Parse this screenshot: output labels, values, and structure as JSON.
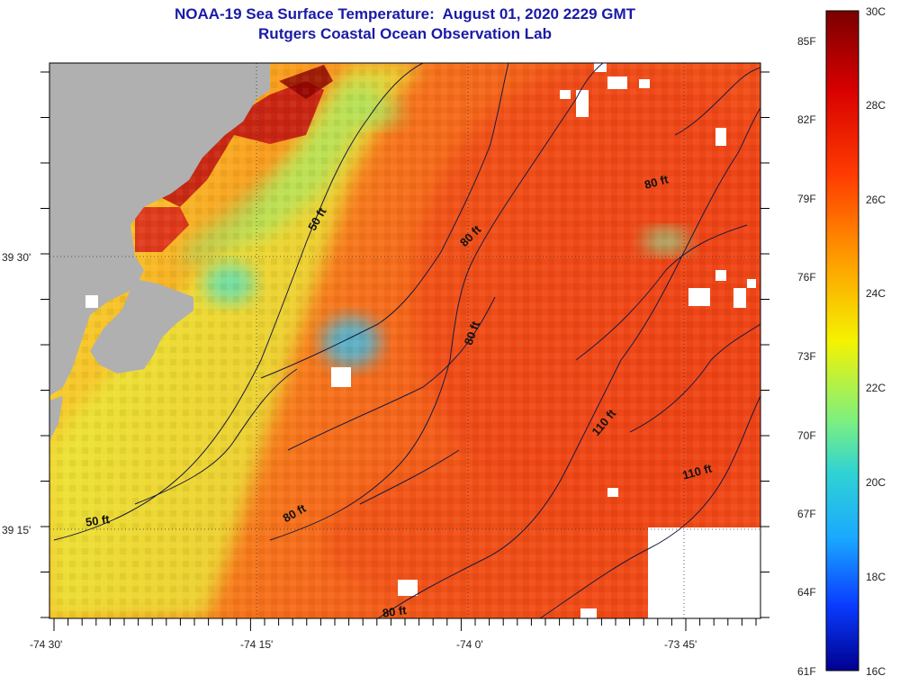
{
  "title": "NOAA-19 Sea Surface Temperature:  August 01, 2020 2229 GMT",
  "subtitle": "Rutgers Coastal Ocean Observation Lab",
  "axes": {
    "lon_labels": [
      "-74 30'",
      "-74 15'",
      "-74 0'",
      "-73 45'"
    ],
    "lat_labels": [
      "39 30'",
      "39 15'"
    ]
  },
  "depth_contours": [
    {
      "label": "50 ft"
    },
    {
      "label": "50 ft"
    },
    {
      "label": "80 ft"
    },
    {
      "label": "80 ft"
    },
    {
      "label": "80 ft"
    },
    {
      "label": "80 ft"
    },
    {
      "label": "80 ft"
    },
    {
      "label": "110 ft"
    },
    {
      "label": "110 ft"
    }
  ],
  "colorbar": {
    "celsius_labels": [
      "30C",
      "28C",
      "26C",
      "24C",
      "22C",
      "20C",
      "18C",
      "16C"
    ],
    "fahrenheit_labels": [
      "85F",
      "82F",
      "79F",
      "76F",
      "73F",
      "70F",
      "67F",
      "64F",
      "61F"
    ]
  },
  "colors": {
    "land": "#b0b0b0",
    "cloud_nodata": "#ffffff",
    "title": "#1a1aa6"
  }
}
